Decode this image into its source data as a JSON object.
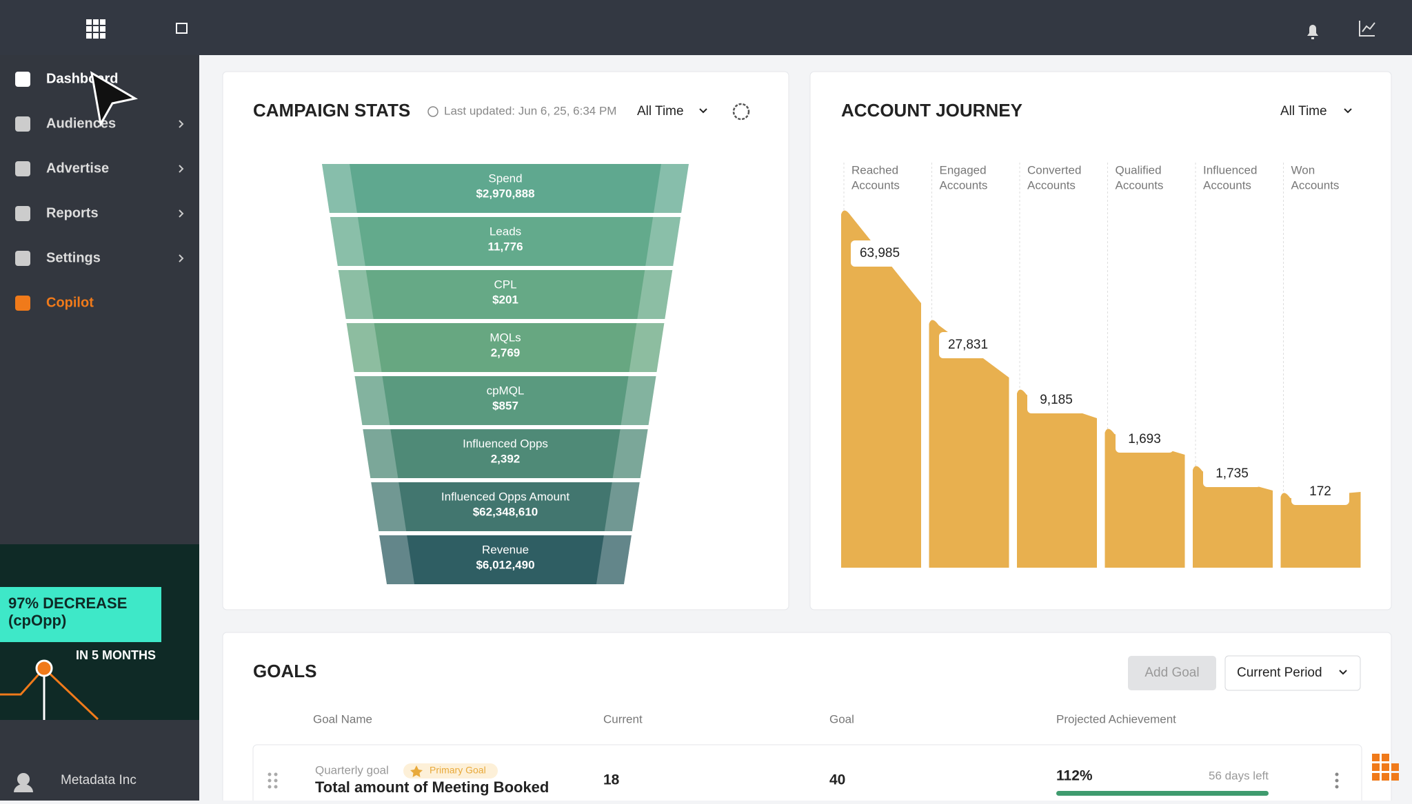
{
  "nav": [
    "Dashboard",
    "Audiences",
    "Advertise",
    "Reports",
    "Settings",
    "Copilot"
  ],
  "promo": {
    "headline": "97% DECREASE",
    "sub": "(cpOpp)",
    "period": "IN 5 MONTHS"
  },
  "account": "Metadata Inc",
  "campaign": {
    "title": "CAMPAIGN STATS",
    "updated": "Last updated: Jun 6, 25, 6:34 PM",
    "filter": "All Time",
    "stages": [
      {
        "label": "Spend",
        "value": "$2,970,888"
      },
      {
        "label": "Leads",
        "value": "11,776"
      },
      {
        "label": "CPL",
        "value": "$201"
      },
      {
        "label": "MQLs",
        "value": "2,769"
      },
      {
        "label": "cpMQL",
        "value": "$857"
      },
      {
        "label": "Influenced Opps",
        "value": "2,392"
      },
      {
        "label": "Influenced Opps Amount",
        "value": "$62,348,610"
      },
      {
        "label": "Revenue",
        "value": "$6,012,490"
      }
    ]
  },
  "journey": {
    "title": "ACCOUNT JOURNEY",
    "filter": "All Time",
    "stages": [
      {
        "label": [
          "Reached",
          "Accounts"
        ],
        "value": "63,985"
      },
      {
        "label": [
          "Engaged",
          "Accounts"
        ],
        "value": "27,831"
      },
      {
        "label": [
          "Converted",
          "Accounts"
        ],
        "value": "9,185"
      },
      {
        "label": [
          "Qualified",
          "Accounts"
        ],
        "value": "1,693"
      },
      {
        "label": [
          "Influenced",
          "Accounts"
        ],
        "value": "1,735"
      },
      {
        "label": [
          "Won",
          "Accounts"
        ],
        "value": "172"
      }
    ]
  },
  "goals": {
    "title": "GOALS",
    "add": "Add Goal",
    "period": "Current Period",
    "columns": [
      "Goal Name",
      "Current",
      "Goal",
      "Projected Achievement"
    ],
    "rows": [
      {
        "type": "Quarterly goal",
        "badge": "Primary Goal",
        "name": "Total amount of Meeting Booked",
        "current": "18",
        "goal": "40",
        "projected": "112%",
        "left": "56 days left"
      }
    ]
  }
}
